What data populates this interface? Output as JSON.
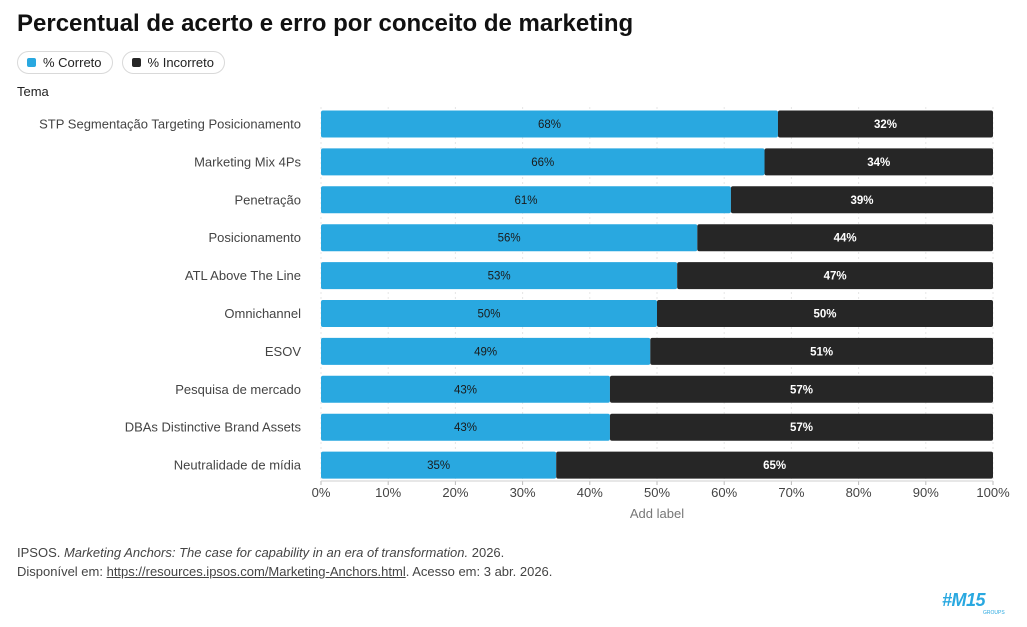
{
  "title": "Percentual de acerto e erro por conceito de marketing",
  "legend": {
    "correct": "% Correto",
    "incorrect": "% Incorreto"
  },
  "axis_title": "Tema",
  "colors": {
    "correct": "#29a8e0",
    "incorrect": "#262626",
    "grid": "#e6e6e6"
  },
  "chart_data": {
    "type": "bar",
    "orientation": "horizontal",
    "stacked": true,
    "categories": [
      "STP Segmentação Targeting Posicionamento",
      "Marketing Mix 4Ps",
      "Penetração",
      "Posicionamento",
      "ATL Above The Line",
      "Omnichannel",
      "ESOV",
      "Pesquisa de mercado",
      "DBAs Distinctive Brand Assets",
      "Neutralidade de mídia"
    ],
    "series": [
      {
        "name": "% Correto",
        "values": [
          68,
          66,
          61,
          56,
          53,
          50,
          49,
          43,
          43,
          35
        ]
      },
      {
        "name": "% Incorreto",
        "values": [
          32,
          34,
          39,
          44,
          47,
          50,
          51,
          57,
          57,
          65
        ]
      }
    ],
    "xticks": [
      "0%",
      "10%",
      "20%",
      "30%",
      "40%",
      "50%",
      "60%",
      "70%",
      "80%",
      "90%",
      "100%"
    ],
    "xlim": [
      0,
      100
    ],
    "xlabel": "Add label",
    "ylabel": "Tema",
    "legend_position": "top-left"
  },
  "source": {
    "line1_prefix": "IPSOS. ",
    "line1_italic": "Marketing Anchors: The case for capability in an era of transformation.",
    "line1_suffix": " 2026.",
    "line2_prefix": "Disponível em: ",
    "link_text": "https://resources.ipsos.com/Marketing-Anchors.html",
    "line2_suffix": ". Acesso em: 3 abr. 2026."
  },
  "logo": {
    "text": "#M15",
    "sub": "GROUPS"
  }
}
